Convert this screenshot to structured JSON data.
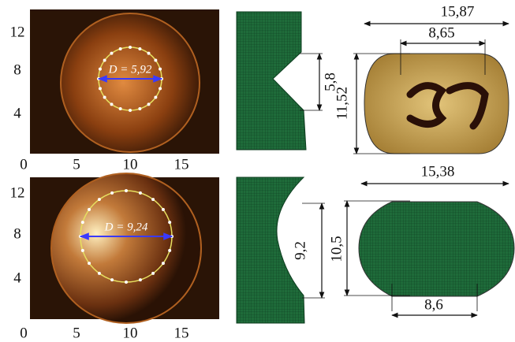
{
  "rows": [
    {
      "photo": {
        "yticks": [
          12,
          8,
          4
        ],
        "xticks": [
          0,
          5,
          10,
          15
        ],
        "diameter_label": "D = 5,92"
      },
      "mesh_label": "5,8",
      "width_label": "15,87",
      "inner_width_label": "8,65",
      "height_label": "11,52"
    },
    {
      "photo": {
        "yticks": [
          12,
          8,
          4
        ],
        "xticks": [
          0,
          5,
          10,
          15
        ],
        "diameter_label": "D = 9,24"
      },
      "mesh_label": "9,2",
      "width_label": "15,38",
      "inner_width_label": "8,6",
      "height_label": "10,5"
    }
  ]
}
